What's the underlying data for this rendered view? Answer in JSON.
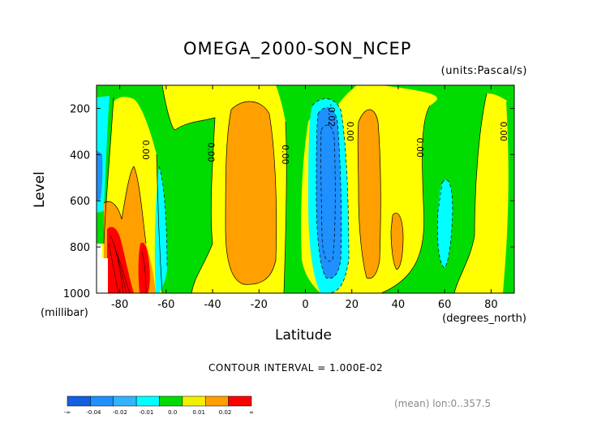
{
  "chart_data": {
    "type": "heatmap",
    "title": "OMEGA_2000-SON_NCEP",
    "units_note": "(units:Pascal/s)",
    "xlabel": "Latitude",
    "xlabel_units": "(degrees_north)",
    "ylabel": "Level",
    "ylabel_units": "(millibar)",
    "x_ticks": [
      "-80",
      "-60",
      "-40",
      "-20",
      "0",
      "20",
      "40",
      "60",
      "80"
    ],
    "y_ticks": [
      "200",
      "400",
      "600",
      "800",
      "1000"
    ],
    "xlim": [
      -90,
      90
    ],
    "ylim": [
      1000,
      100
    ],
    "contour_labels": [
      {
        "text": "0.00",
        "lat": -70,
        "level": 380
      },
      {
        "text": "0.00",
        "lat": -42,
        "level": 390
      },
      {
        "text": "0.00",
        "lat": -10,
        "level": 400
      },
      {
        "text": "-0.02",
        "lat": 10,
        "level": 230
      },
      {
        "text": "0.00",
        "lat": 18,
        "level": 300
      },
      {
        "text": "0.00",
        "lat": 48,
        "level": 370
      },
      {
        "text": "0.00",
        "lat": 84,
        "level": 300
      }
    ],
    "colorbar": {
      "colors": [
        "#1060e0",
        "#1e90ff",
        "#30b4ff",
        "#00ffff",
        "#00dc00",
        "#f0f000",
        "#ffa000",
        "#ff0000"
      ],
      "labels": [
        "-∞",
        "-0.04",
        "-0.02",
        "-0.01",
        "0.0",
        "0.01",
        "0.02",
        "∞"
      ]
    },
    "colors": {
      "gt_0.02": "#ff0000",
      "0.01_to_0.02": "#ffa000",
      "0.0_to_0.01": "#ffff00",
      "-0.01_to_0.0": "#00dc00",
      "-0.02_to_-0.01": "#00ffff",
      "-0.04_to_-0.02": "#1e90ff",
      "lt_-0.04": "#0050ff"
    }
  },
  "contour_interval": "CONTOUR INTERVAL = 1.000E-02",
  "footnote": "(mean) lon:0..357.5"
}
